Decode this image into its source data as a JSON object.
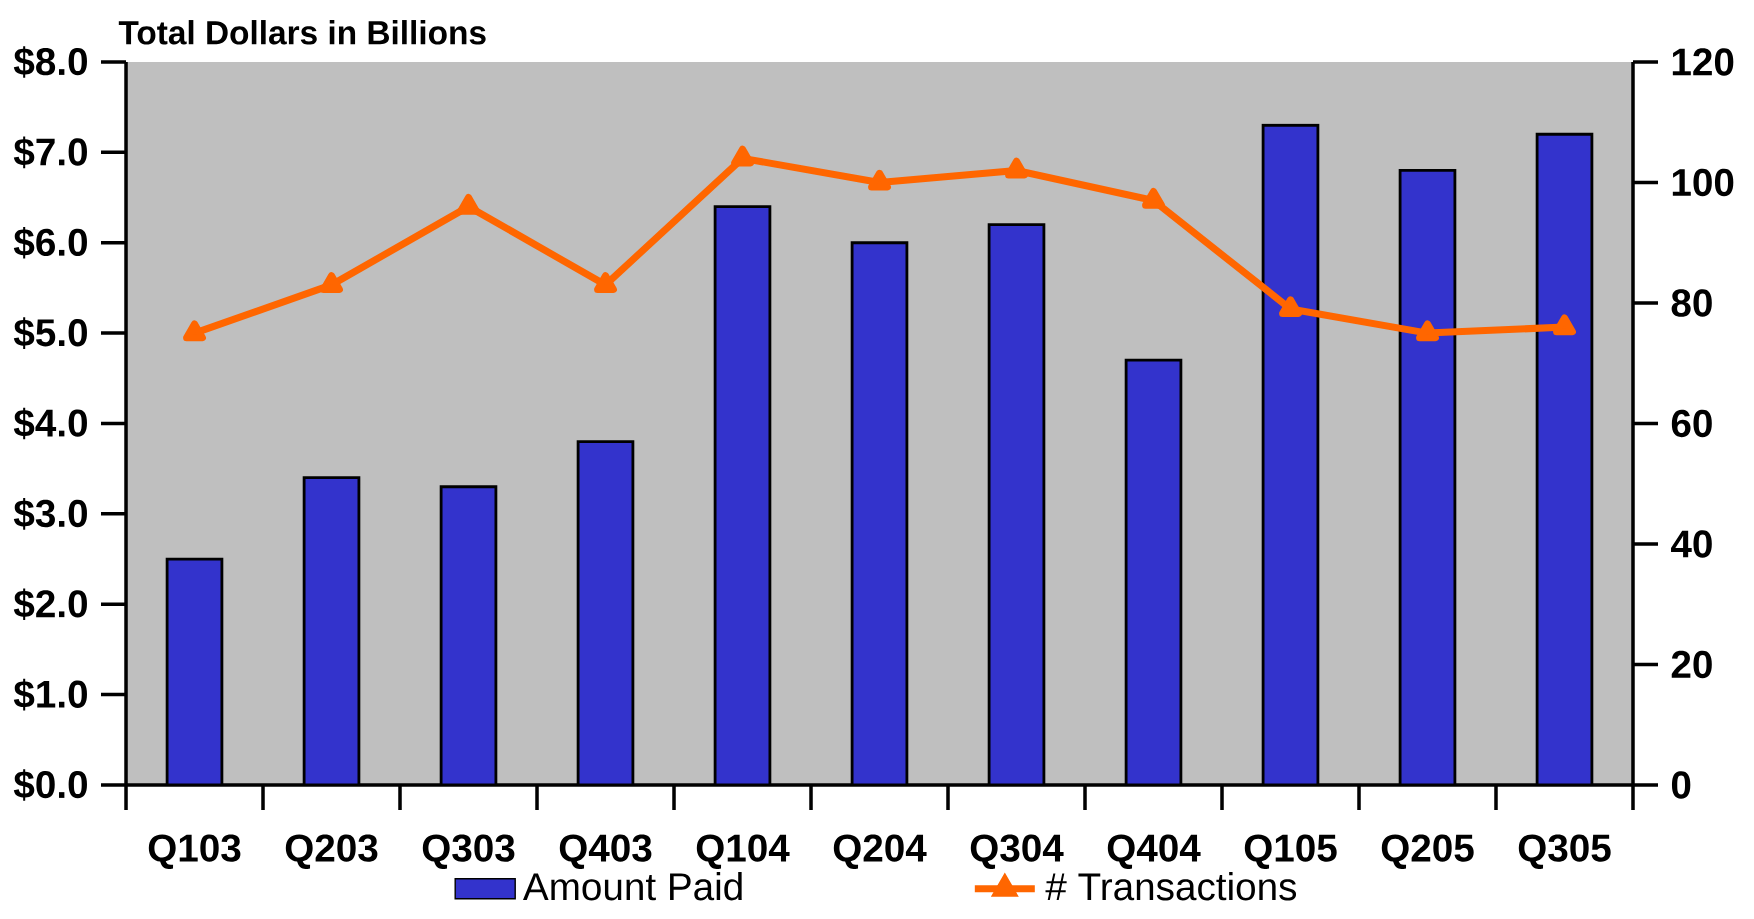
{
  "chart_data": {
    "type": "bar",
    "ylabel": "Total Dollars in Billions",
    "categories": [
      "Q103",
      "Q203",
      "Q303",
      "Q403",
      "Q104",
      "Q204",
      "Q304",
      "Q404",
      "Q105",
      "Q205",
      "Q305"
    ],
    "series": [
      {
        "name": "Amount Paid",
        "color": "#3333cc",
        "values": [
          2.5,
          3.4,
          3.3,
          3.8,
          6.4,
          6.0,
          6.2,
          4.7,
          7.3,
          6.8,
          7.2
        ]
      },
      {
        "name": "# Transactions",
        "type": "line",
        "axis": "y2",
        "color": "#ff6600",
        "values": [
          75,
          83,
          96,
          83,
          104,
          100,
          102,
          97,
          79,
          75,
          76
        ]
      }
    ],
    "marker": "triangle",
    "legend": "bottom",
    "ylim": [
      0,
      8
    ],
    "yticks": [
      {
        "value": 0,
        "label": "$0.0"
      },
      {
        "value": 1,
        "label": "$1.0"
      },
      {
        "value": 2,
        "label": "$2.0"
      },
      {
        "value": 3,
        "label": "$3.0"
      },
      {
        "value": 4,
        "label": "$4.0"
      },
      {
        "value": 5,
        "label": "$5.0"
      },
      {
        "value": 6,
        "label": "$6.0"
      },
      {
        "value": 7,
        "label": "$7.0"
      },
      {
        "value": 8,
        "label": "$8.0"
      }
    ],
    "y2lim": [
      0,
      120
    ],
    "y2ticks": [
      0,
      20,
      40,
      60,
      80,
      100,
      120
    ]
  }
}
